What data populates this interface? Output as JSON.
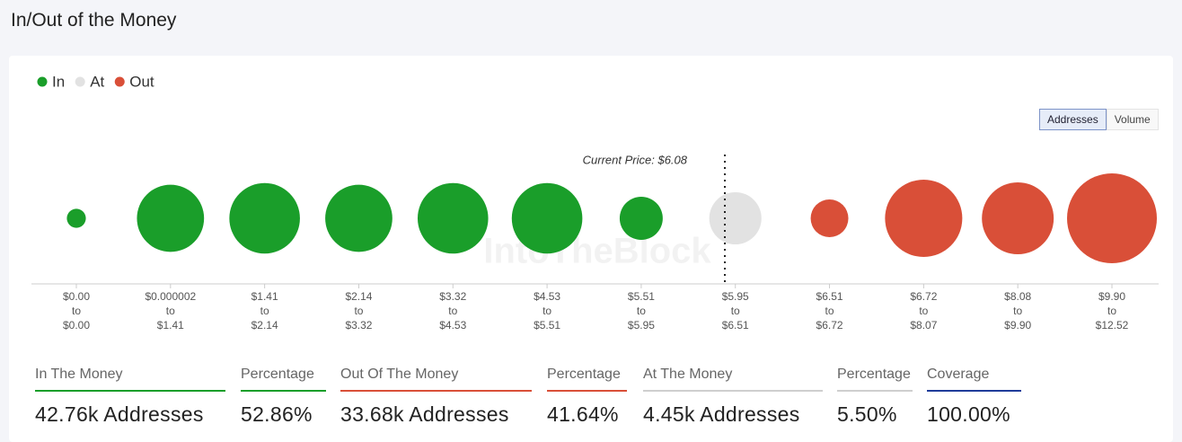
{
  "header": {
    "title": "In/Out of the Money"
  },
  "chart_data": {
    "type": "bubble",
    "categories": [
      [
        "$0.00",
        "$0.00"
      ],
      [
        "$0.000002",
        "$1.41"
      ],
      [
        "$1.41",
        "$2.14"
      ],
      [
        "$2.14",
        "$3.32"
      ],
      [
        "$3.32",
        "$4.53"
      ],
      [
        "$4.53",
        "$5.51"
      ],
      [
        "$5.51",
        "$5.95"
      ],
      [
        "$5.95",
        "$6.51"
      ],
      [
        "$6.51",
        "$6.72"
      ],
      [
        "$6.72",
        "$8.07"
      ],
      [
        "$8.08",
        "$9.90"
      ],
      [
        "$9.90",
        "$12.52"
      ]
    ],
    "range_joiner": "to",
    "series": [
      {
        "name": "In",
        "color": "#1a9e2a",
        "values": [
          590,
          7360,
          8140,
          7360,
          8140,
          8140,
          3030,
          null,
          null,
          null,
          null,
          null
        ]
      },
      {
        "name": "At",
        "color": "#e2e2e2",
        "values": [
          null,
          null,
          null,
          null,
          null,
          null,
          null,
          4450,
          null,
          null,
          null,
          null
        ]
      },
      {
        "name": "Out",
        "color": "#d94f38",
        "values": [
          null,
          null,
          null,
          null,
          null,
          null,
          null,
          null,
          2320,
          9750,
          8430,
          13180
        ]
      }
    ],
    "annotation": "Current Price: $6.08",
    "watermark": "IntoTheBlock",
    "legend": "top-left"
  },
  "toggle": {
    "options": [
      "Addresses",
      "Volume"
    ],
    "active": 0
  },
  "stats": [
    {
      "label": "In The Money",
      "value": "42.76k Addresses",
      "color": "#1a9e2a"
    },
    {
      "label": "Percentage",
      "value": "52.86%",
      "color": "#1a9e2a"
    },
    {
      "label": "Out Of The Money",
      "value": "33.68k Addresses",
      "color": "#d94f38"
    },
    {
      "label": "Percentage",
      "value": "41.64%",
      "color": "#d94f38"
    },
    {
      "label": "At The Money",
      "value": "4.45k Addresses",
      "color": "#cfcfcf"
    },
    {
      "label": "Percentage",
      "value": "5.50%",
      "color": "#cfcfcf"
    },
    {
      "label": "Coverage",
      "value": "100.00%",
      "color": "#1f3c9a"
    }
  ]
}
